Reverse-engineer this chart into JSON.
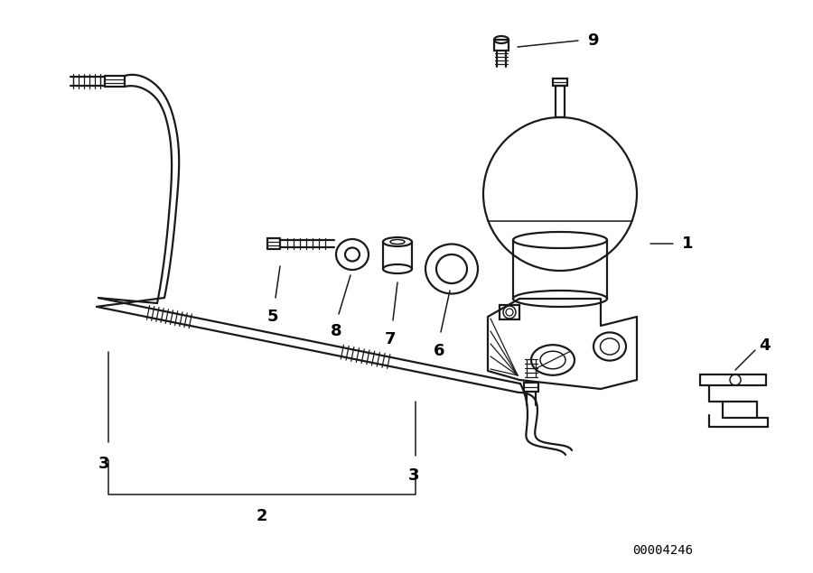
{
  "bg_color": "#ffffff",
  "line_color": "#1a1a1a",
  "label_color": "#000000",
  "diagram_id": "00004246",
  "figsize": [
    9.0,
    6.35
  ],
  "dpi": 100
}
